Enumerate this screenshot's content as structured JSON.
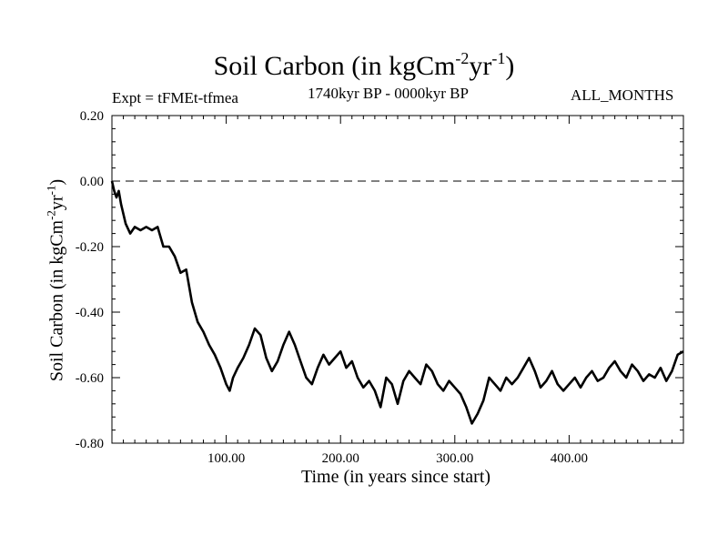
{
  "chart_data": {
    "type": "line",
    "title": {
      "base": "Soil Carbon (in kgCm",
      "sup1": "-2",
      "mid": "yr",
      "sup2": "-1",
      "end": ")"
    },
    "expt_label": "Expt = tFMEt-tfmea",
    "period_label": "1740kyr BP - 0000kyr BP",
    "months_label": "ALL_MONTHS",
    "xlabel": "Time (in years since start)",
    "ylabel": {
      "base": "Soil Carbon (in kgCm",
      "sup1": "-2",
      "mid": "yr",
      "sup2": "-1",
      "end": ")"
    },
    "xlim": [
      0,
      500
    ],
    "ylim": [
      -0.8,
      0.2
    ],
    "x_ticks": [
      100,
      200,
      300,
      400
    ],
    "x_tick_labels": [
      "100.00",
      "200.00",
      "300.00",
      "400.00"
    ],
    "y_ticks": [
      0.2,
      0.0,
      -0.2,
      -0.4,
      -0.6,
      -0.8
    ],
    "y_tick_labels": [
      "0.20",
      "0.00",
      "-0.20",
      "-0.40",
      "-0.60",
      "-0.80"
    ],
    "reference_line": {
      "y": 0.0,
      "style": "dashed"
    },
    "series": [
      {
        "name": "Soil Carbon",
        "color": "#000000",
        "x": [
          0,
          2,
          4,
          6,
          8,
          12,
          16,
          20,
          25,
          30,
          35,
          40,
          45,
          50,
          55,
          60,
          65,
          70,
          75,
          80,
          85,
          90,
          95,
          100,
          103,
          106,
          110,
          115,
          120,
          125,
          130,
          135,
          140,
          145,
          150,
          155,
          160,
          165,
          170,
          175,
          180,
          185,
          190,
          195,
          200,
          205,
          210,
          215,
          220,
          225,
          230,
          235,
          240,
          245,
          250,
          255,
          260,
          265,
          270,
          275,
          280,
          285,
          290,
          295,
          300,
          305,
          310,
          315,
          320,
          325,
          330,
          335,
          340,
          345,
          350,
          355,
          360,
          365,
          370,
          375,
          380,
          385,
          390,
          395,
          400,
          405,
          410,
          415,
          420,
          425,
          430,
          435,
          440,
          445,
          450,
          455,
          460,
          465,
          470,
          475,
          480,
          485,
          490,
          495,
          500
        ],
        "y": [
          0.0,
          -0.03,
          -0.05,
          -0.03,
          -0.07,
          -0.13,
          -0.16,
          -0.14,
          -0.15,
          -0.14,
          -0.15,
          -0.14,
          -0.2,
          -0.2,
          -0.23,
          -0.28,
          -0.27,
          -0.37,
          -0.43,
          -0.46,
          -0.5,
          -0.53,
          -0.57,
          -0.62,
          -0.64,
          -0.6,
          -0.57,
          -0.54,
          -0.5,
          -0.45,
          -0.47,
          -0.54,
          -0.58,
          -0.55,
          -0.5,
          -0.46,
          -0.5,
          -0.55,
          -0.6,
          -0.62,
          -0.57,
          -0.53,
          -0.56,
          -0.54,
          -0.52,
          -0.57,
          -0.55,
          -0.6,
          -0.63,
          -0.61,
          -0.64,
          -0.69,
          -0.6,
          -0.62,
          -0.68,
          -0.61,
          -0.58,
          -0.6,
          -0.62,
          -0.56,
          -0.58,
          -0.62,
          -0.64,
          -0.61,
          -0.63,
          -0.65,
          -0.69,
          -0.74,
          -0.71,
          -0.67,
          -0.6,
          -0.62,
          -0.64,
          -0.6,
          -0.62,
          -0.6,
          -0.57,
          -0.54,
          -0.58,
          -0.63,
          -0.61,
          -0.58,
          -0.62,
          -0.64,
          -0.62,
          -0.6,
          -0.63,
          -0.6,
          -0.58,
          -0.61,
          -0.6,
          -0.57,
          -0.55,
          -0.58,
          -0.6,
          -0.56,
          -0.58,
          -0.61,
          -0.59,
          -0.6,
          -0.57,
          -0.61,
          -0.58,
          -0.53,
          -0.52
        ]
      }
    ]
  }
}
